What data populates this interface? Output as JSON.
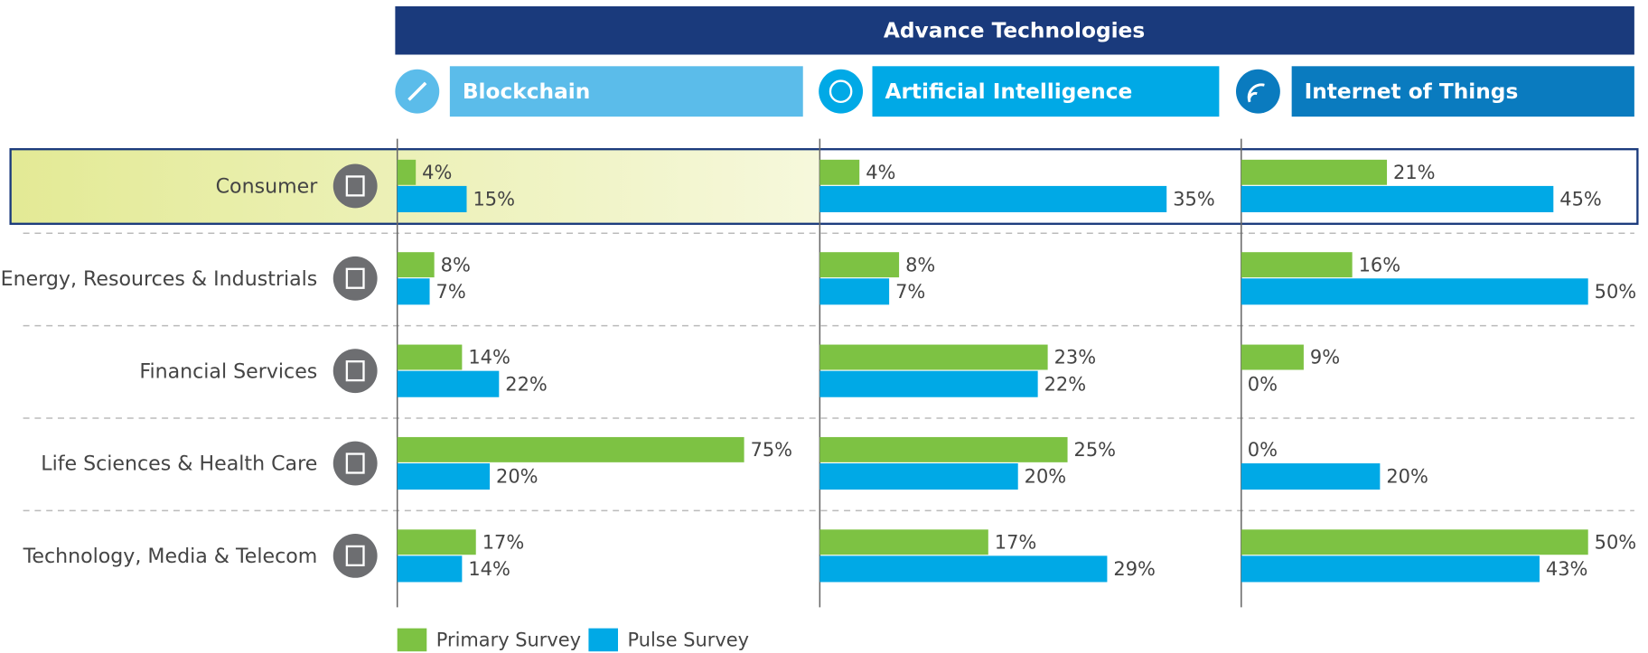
{
  "chart_data": {
    "type": "bar",
    "title": "Advance Technologies",
    "categories": [
      "Consumer",
      "Energy, Resources & Industrials",
      "Financial Services",
      "Life Sciences & Health Care",
      "Technology, Media & Telecom"
    ],
    "series": [
      {
        "name": "Primary Survey",
        "color": "#7dc243"
      },
      {
        "name": "Pulse Survey",
        "color": "#00a9e6"
      }
    ],
    "panels": [
      {
        "title": "Blockchain",
        "color": "#5bbcea",
        "xlim": [
          0,
          75
        ],
        "series": [
          {
            "values": [
              4,
              8,
              14,
              75,
              17
            ],
            "value_labels": [
              "4%",
              "8%",
              "14%",
              "75%",
              "17%"
            ]
          },
          {
            "values": [
              15,
              7,
              22,
              20,
              14
            ],
            "value_labels": [
              "15%",
              "7%",
              "22%",
              "20%",
              "14%"
            ]
          }
        ]
      },
      {
        "title": "Artificial Intelligence",
        "color": "#00a9e6",
        "xlim": [
          0,
          35
        ],
        "series": [
          {
            "values": [
              4,
              8,
              23,
              25,
              17
            ],
            "value_labels": [
              "4%",
              "8%",
              "23%",
              "25%",
              "17%"
            ]
          },
          {
            "values": [
              35,
              7,
              22,
              20,
              29
            ],
            "value_labels": [
              "35%",
              "7%",
              "22%",
              "20%",
              "29%"
            ]
          }
        ]
      },
      {
        "title": "Internet of Things",
        "color": "#0a7bbf",
        "xlim": [
          0,
          50
        ],
        "series": [
          {
            "values": [
              21,
              16,
              9,
              0,
              50
            ],
            "value_labels": [
              "21%",
              "16%",
              "9%",
              "0%",
              "50%"
            ]
          },
          {
            "values": [
              45,
              50,
              0,
              20,
              43
            ],
            "value_labels": [
              "45%",
              "50%",
              "0%",
              "20%",
              "43%"
            ]
          }
        ]
      }
    ]
  }
}
